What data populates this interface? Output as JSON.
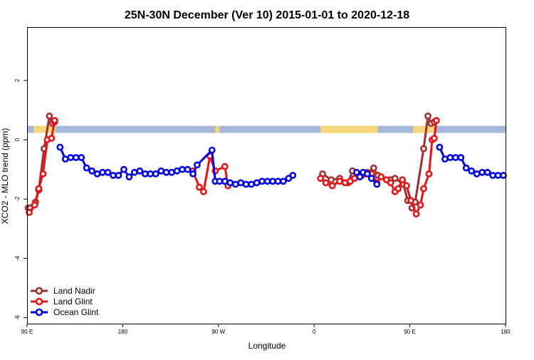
{
  "chart_data": {
    "type": "line",
    "title": "25N-30N December (Ver 10)   2015-01-01 to 2020-12-18",
    "xlabel": "Longitude",
    "ylabel": "XCO2 - MLO trend (ppm)",
    "xlim": [
      90,
      540
    ],
    "ylim": [
      -6.2,
      3.8
    ],
    "xticks": [
      90,
      180,
      270,
      360,
      450,
      540
    ],
    "xtick_labels": [
      "90 E",
      "180",
      "90 W",
      "0",
      "90 E",
      "180"
    ],
    "yticks": [
      -6,
      -4,
      -2,
      0,
      2
    ],
    "ytick_labels": [
      "-6",
      "-4",
      "-2",
      "0",
      "2"
    ],
    "grid": false,
    "legend_position": "bottom-left",
    "land_ocean_strip": {
      "y_center": 0.35,
      "ocean_color": "#a3b8d8",
      "land_color": "#f6d77a"
    },
    "series": [
      {
        "name": "Land Nadir",
        "color": "#a03030",
        "segments": [
          [
            [
              91,
              -2.3
            ],
            [
              93,
              -2.3
            ],
            [
              98,
              -2.1
            ],
            [
              101,
              -1.7
            ],
            [
              106,
              -0.3
            ],
            [
              111,
              0.8
            ],
            [
              114,
              0.55
            ],
            [
              116,
              0.6
            ]
          ],
          [
            [
              368,
              -1.15
            ],
            [
              376,
              -1.35
            ],
            [
              384,
              -1.3
            ],
            [
              392,
              -1.45
            ],
            [
              396,
              -1.05
            ],
            [
              405,
              -1.2
            ],
            [
              410,
              -1.1
            ],
            [
              416,
              -0.95
            ],
            [
              420,
              -1.2
            ],
            [
              432,
              -1.35
            ],
            [
              436,
              -1.3
            ],
            [
              444,
              -1.5
            ],
            [
              448,
              -2.05
            ]
          ],
          [
            [
              452,
              -2.3
            ],
            [
              455,
              -2.1
            ],
            [
              463,
              -0.3
            ],
            [
              467,
              0.8
            ],
            [
              470,
              0.55
            ],
            [
              473,
              0.6
            ]
          ]
        ]
      },
      {
        "name": "Land Glint",
        "color": "#ee1111",
        "segments": [
          [
            [
              92,
              -2.45
            ],
            [
              97,
              -2.2
            ],
            [
              101,
              -1.65
            ],
            [
              105,
              -1.15
            ],
            [
              109,
              0.0
            ],
            [
              113,
              0.05
            ],
            [
              116,
              0.65
            ]
          ],
          [
            [
              246,
              -1.05
            ],
            [
              252,
              -1.6
            ],
            [
              256,
              -1.75
            ],
            [
              262,
              -0.55
            ],
            [
              267,
              -1.05
            ],
            [
              276,
              -0.9
            ],
            [
              279,
              -1.55
            ]
          ],
          [
            [
              366,
              -1.3
            ],
            [
              371,
              -1.45
            ],
            [
              377,
              -1.55
            ],
            [
              384,
              -1.4
            ],
            [
              389,
              -1.45
            ],
            [
              394,
              -1.4
            ],
            [
              398,
              -1.3
            ],
            [
              402,
              -1.2
            ],
            [
              408,
              -1.15
            ],
            [
              414,
              -1.15
            ],
            [
              419,
              -1.45
            ],
            [
              423,
              -1.25
            ],
            [
              428,
              -1.35
            ],
            [
              432,
              -1.45
            ],
            [
              436,
              -1.75
            ],
            [
              439,
              -1.65
            ],
            [
              443,
              -1.35
            ],
            [
              447,
              -1.55
            ],
            [
              451,
              -2.05
            ],
            [
              456,
              -2.5
            ],
            [
              460,
              -2.2
            ],
            [
              463,
              -1.65
            ],
            [
              468,
              -1.15
            ],
            [
              471,
              0.0
            ],
            [
              473,
              0.05
            ],
            [
              475,
              0.65
            ]
          ]
        ]
      },
      {
        "name": "Ocean Glint",
        "color": "#0000ee",
        "segments": [
          [
            [
              121,
              -0.25
            ],
            [
              126,
              -0.65
            ],
            [
              131,
              -0.6
            ],
            [
              136,
              -0.6
            ],
            [
              141,
              -0.6
            ],
            [
              146,
              -0.95
            ],
            [
              151,
              -1.05
            ],
            [
              156,
              -1.15
            ],
            [
              161,
              -1.1
            ],
            [
              166,
              -1.1
            ],
            [
              171,
              -1.2
            ],
            [
              176,
              -1.2
            ],
            [
              181,
              -1.0
            ],
            [
              186,
              -1.25
            ],
            [
              191,
              -1.1
            ],
            [
              196,
              -1.05
            ],
            [
              201,
              -1.15
            ],
            [
              206,
              -1.15
            ],
            [
              211,
              -1.15
            ],
            [
              216,
              -1.05
            ],
            [
              221,
              -1.1
            ],
            [
              226,
              -1.1
            ],
            [
              231,
              -1.05
            ],
            [
              236,
              -1.0
            ],
            [
              241,
              -1.0
            ],
            [
              246,
              -1.15
            ],
            [
              250,
              -0.85
            ],
            [
              264,
              -0.35
            ],
            [
              267,
              -1.4
            ],
            [
              271,
              -1.4
            ],
            [
              276,
              -1.4
            ],
            [
              281,
              -1.45
            ],
            [
              286,
              -1.5
            ],
            [
              291,
              -1.45
            ],
            [
              296,
              -1.5
            ],
            [
              301,
              -1.5
            ],
            [
              306,
              -1.45
            ],
            [
              311,
              -1.4
            ],
            [
              316,
              -1.4
            ],
            [
              321,
              -1.4
            ],
            [
              326,
              -1.4
            ],
            [
              331,
              -1.4
            ],
            [
              336,
              -1.3
            ],
            [
              340,
              -1.2
            ]
          ],
          [
            [
              400,
              -1.1
            ],
            [
              403,
              -1.25
            ],
            [
              406,
              -1.1
            ],
            [
              410,
              -1.15
            ],
            [
              414,
              -1.3
            ],
            [
              419,
              -1.5
            ]
          ],
          [
            [
              478,
              -0.25
            ],
            [
              483,
              -0.65
            ],
            [
              488,
              -0.6
            ],
            [
              493,
              -0.6
            ],
            [
              498,
              -0.6
            ],
            [
              503,
              -0.95
            ],
            [
              508,
              -1.05
            ],
            [
              513,
              -1.15
            ],
            [
              518,
              -1.1
            ],
            [
              523,
              -1.1
            ],
            [
              528,
              -1.2
            ],
            [
              533,
              -1.2
            ],
            [
              538,
              -1.2
            ]
          ]
        ]
      }
    ]
  }
}
